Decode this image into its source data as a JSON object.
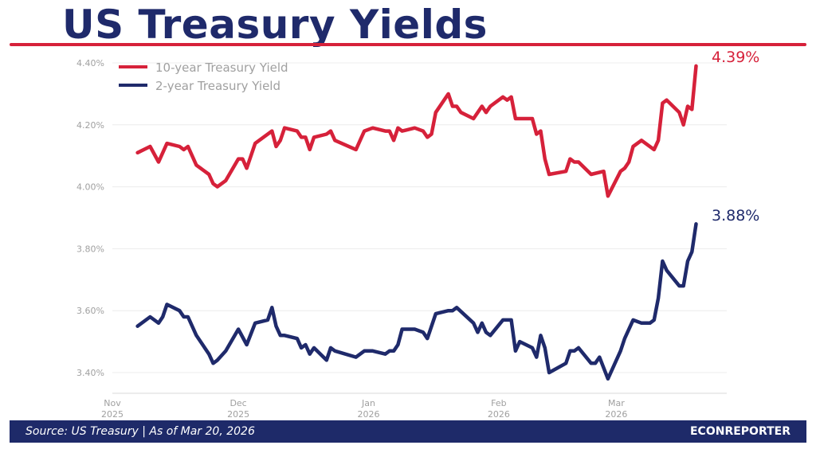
{
  "title": "US Treasury Yields",
  "footer": {
    "source": "Source: US Treasury  |  As of Mar 20, 2026",
    "brand": "ECONREPORTER"
  },
  "colors": {
    "ten_year": "#d6213a",
    "two_year": "#1f2a6b",
    "grid": "#ececec",
    "footer_bg": "#1e2a69"
  },
  "chart_data": {
    "type": "line",
    "title": "US Treasury Yields",
    "xlabel": "",
    "ylabel": "",
    "x_unit": "days since 2025-11-01",
    "xlim": [
      0,
      146
    ],
    "ylim": [
      3.33,
      4.4
    ],
    "grid": true,
    "legend_position": "top-left",
    "y_ticks": [
      {
        "value": 4.4,
        "label": "4.40%"
      },
      {
        "value": 4.2,
        "label": "4.20%"
      },
      {
        "value": 4.0,
        "label": "4.00%"
      },
      {
        "value": 3.8,
        "label": "3.80%"
      },
      {
        "value": 3.6,
        "label": "3.60%"
      },
      {
        "value": 3.4,
        "label": "3.40%"
      }
    ],
    "x_ticks": [
      {
        "day": 0,
        "month": "Nov",
        "year": "2025"
      },
      {
        "day": 30,
        "month": "Dec",
        "year": "2025"
      },
      {
        "day": 61,
        "month": "Jan",
        "year": "2026"
      },
      {
        "day": 92,
        "month": "Feb",
        "year": "2026"
      },
      {
        "day": 120,
        "month": "Mar",
        "year": "2026"
      }
    ],
    "series": [
      {
        "name": "10-year Treasury Yield",
        "end_label": "4.39%",
        "x": [
          6,
          9,
          11,
          13,
          16,
          17,
          18,
          20,
          23,
          24,
          25,
          27,
          30,
          31,
          32,
          34,
          38,
          39,
          40,
          41,
          44,
          45,
          46,
          47,
          48,
          51,
          52,
          53,
          58,
          60,
          62,
          65,
          66,
          67,
          68,
          69,
          72,
          74,
          75,
          76,
          77,
          80,
          81,
          82,
          83,
          86,
          88,
          89,
          90,
          93,
          94,
          95,
          96,
          97,
          100,
          101,
          102,
          103,
          104,
          108,
          109,
          110,
          111,
          114,
          117,
          118,
          121,
          122,
          123,
          124,
          126,
          129,
          130,
          131,
          132,
          135,
          136,
          137,
          138,
          139
        ],
        "values": [
          4.11,
          4.13,
          4.08,
          4.14,
          4.13,
          4.12,
          4.13,
          4.07,
          4.04,
          4.01,
          4.0,
          4.02,
          4.09,
          4.09,
          4.06,
          4.14,
          4.18,
          4.13,
          4.15,
          4.19,
          4.18,
          4.16,
          4.16,
          4.12,
          4.16,
          4.17,
          4.18,
          4.15,
          4.12,
          4.18,
          4.19,
          4.18,
          4.18,
          4.15,
          4.19,
          4.18,
          4.19,
          4.18,
          4.16,
          4.17,
          4.24,
          4.3,
          4.26,
          4.26,
          4.24,
          4.22,
          4.26,
          4.24,
          4.26,
          4.29,
          4.28,
          4.29,
          4.22,
          4.22,
          4.22,
          4.17,
          4.18,
          4.09,
          4.04,
          4.05,
          4.09,
          4.08,
          4.08,
          4.04,
          4.05,
          3.97,
          4.05,
          4.06,
          4.08,
          4.13,
          4.15,
          4.12,
          4.15,
          4.27,
          4.28,
          4.24,
          4.2,
          4.26,
          4.25,
          4.39
        ]
      },
      {
        "name": "2-year Treasury Yield",
        "end_label": "3.88%",
        "x": [
          6,
          9,
          11,
          12,
          13,
          16,
          17,
          18,
          20,
          23,
          24,
          25,
          27,
          30,
          32,
          34,
          37,
          38,
          39,
          40,
          41,
          44,
          45,
          46,
          47,
          48,
          51,
          52,
          53,
          58,
          60,
          62,
          65,
          66,
          67,
          68,
          69,
          72,
          74,
          75,
          77,
          80,
          81,
          82,
          86,
          87,
          88,
          89,
          90,
          93,
          95,
          96,
          97,
          100,
          101,
          102,
          103,
          104,
          108,
          109,
          110,
          111,
          114,
          115,
          116,
          118,
          121,
          122,
          124,
          126,
          128,
          129,
          130,
          131,
          132,
          135,
          136,
          137,
          138,
          139
        ],
        "values": [
          3.55,
          3.58,
          3.56,
          3.58,
          3.62,
          3.6,
          3.58,
          3.58,
          3.52,
          3.46,
          3.43,
          3.44,
          3.47,
          3.54,
          3.49,
          3.56,
          3.57,
          3.61,
          3.55,
          3.52,
          3.52,
          3.51,
          3.48,
          3.49,
          3.46,
          3.48,
          3.44,
          3.48,
          3.47,
          3.45,
          3.47,
          3.47,
          3.46,
          3.47,
          3.47,
          3.49,
          3.54,
          3.54,
          3.53,
          3.51,
          3.59,
          3.6,
          3.6,
          3.61,
          3.56,
          3.53,
          3.56,
          3.53,
          3.52,
          3.57,
          3.57,
          3.47,
          3.5,
          3.48,
          3.45,
          3.52,
          3.48,
          3.4,
          3.43,
          3.47,
          3.47,
          3.48,
          3.43,
          3.43,
          3.45,
          3.38,
          3.47,
          3.51,
          3.57,
          3.56,
          3.56,
          3.57,
          3.64,
          3.76,
          3.73,
          3.68,
          3.68,
          3.76,
          3.79,
          3.88
        ]
      }
    ]
  }
}
